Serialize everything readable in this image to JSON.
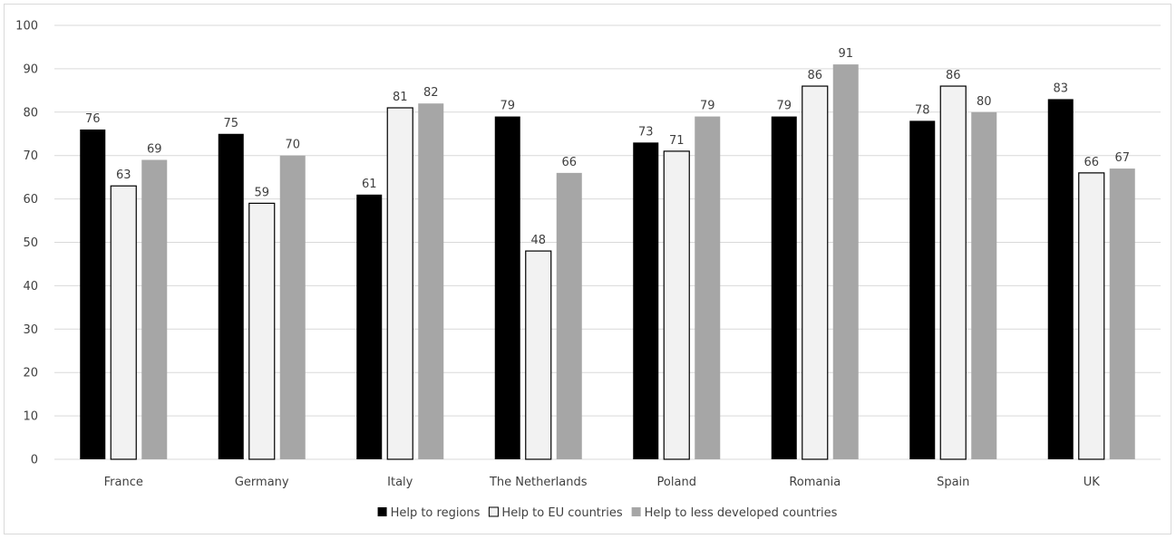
{
  "chart_data": {
    "type": "bar",
    "categories": [
      "France",
      "Germany",
      "Italy",
      "The Netherlands",
      "Poland",
      "Romania",
      "Spain",
      "UK"
    ],
    "series": [
      {
        "name": "Help to regions",
        "values": [
          76,
          75,
          61,
          79,
          73,
          79,
          78,
          83
        ],
        "color": "#000000"
      },
      {
        "name": "Help to EU countries",
        "values": [
          63,
          59,
          81,
          48,
          71,
          86,
          86,
          66
        ],
        "color": "#f2f2f2"
      },
      {
        "name": "Help to less developed countries",
        "values": [
          69,
          70,
          82,
          66,
          79,
          91,
          80,
          67
        ],
        "color": "#a6a6a6"
      }
    ],
    "ylim": [
      0,
      100
    ],
    "yticks": [
      0,
      10,
      20,
      30,
      40,
      50,
      60,
      70,
      80,
      90,
      100
    ],
    "grid": true,
    "legend_position": "bottom"
  }
}
